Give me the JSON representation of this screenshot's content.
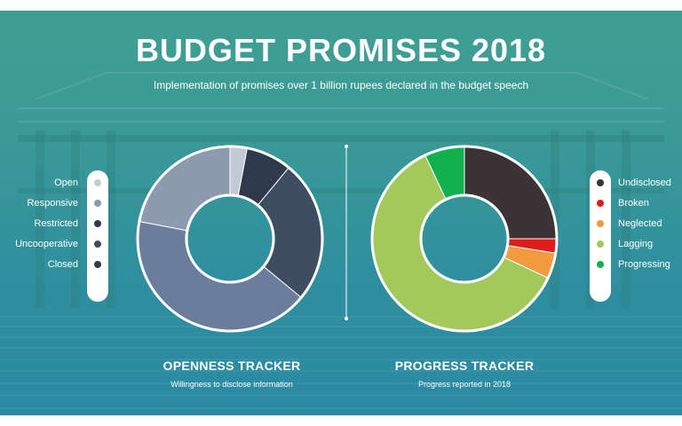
{
  "header": {
    "title": "BUDGET PROMISES 2018",
    "subtitle": "Implementation of promises over 1 billion rupees declared in the budget speech"
  },
  "openness": {
    "title": "OPENNESS TRACKER",
    "subtitle": "Willingness to disclose information"
  },
  "progress": {
    "title": "PROGRESS TRACKER",
    "subtitle": "Progress reported in 2018"
  },
  "chart_data": [
    {
      "type": "pie",
      "hole": true,
      "categories": [
        "Open",
        "Responsive",
        "Restricted",
        "Uncooperative",
        "Closed"
      ],
      "values": [
        3,
        22,
        8,
        25,
        42
      ],
      "colors": [
        "#c3cad5",
        "#8e9ab0",
        "#2e3a4a",
        "#3f4d63",
        "#6a7d9c"
      ],
      "slice_order": [
        "Open",
        "Restricted",
        "Uncooperative",
        "Closed",
        "Responsive"
      ],
      "legend_position": "left",
      "title": "OPENNESS TRACKER"
    },
    {
      "type": "pie",
      "hole": true,
      "categories": [
        "Undisclosed",
        "Broken",
        "Neglected",
        "Lagging",
        "Progressing"
      ],
      "values": [
        25,
        2.5,
        4.5,
        61,
        7
      ],
      "colors": [
        "#3b3335",
        "#e01b1b",
        "#f29a3e",
        "#a2c95a",
        "#13b04f"
      ],
      "legend_colors": [
        "#3b3335",
        "#e01b1b",
        "#f29a3e",
        "#a2c95a",
        "#13b04f"
      ],
      "slice_order": [
        "Undisclosed",
        "Broken",
        "Neglected",
        "Lagging",
        "Progressing"
      ],
      "legend_position": "right",
      "title": "PROGRESS TRACKER"
    }
  ],
  "legend_dot_colors_left": [
    "#c3cad5",
    "#8e9ab0",
    "#2e3a4a",
    "#3f4d63",
    "#2e3a4a"
  ]
}
